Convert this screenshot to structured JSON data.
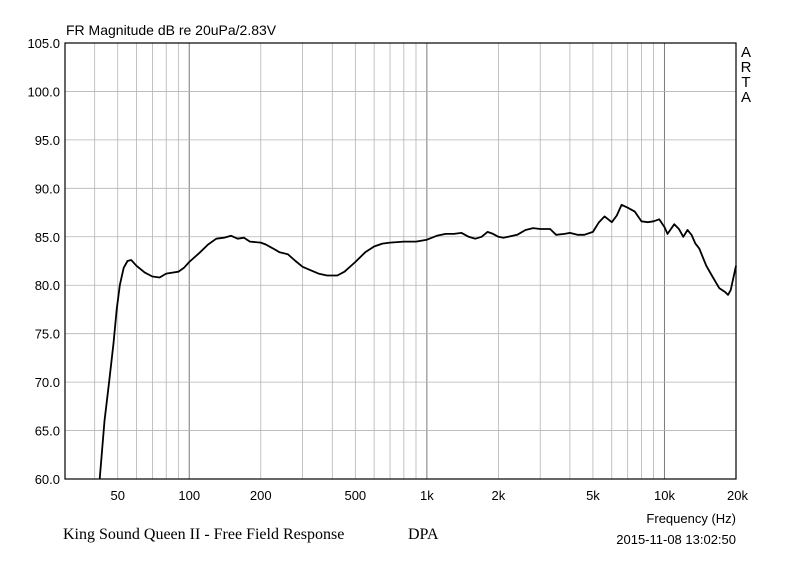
{
  "chart_data": {
    "type": "line",
    "title": "FR Magnitude dB re 20uPa/2.83V",
    "xlabel": "Frequency (Hz)",
    "ylabel": "",
    "x_scale": "log",
    "xlim": [
      30,
      20000
    ],
    "ylim": [
      60,
      105
    ],
    "grid": true,
    "y_ticks": [
      "105.0",
      "100.0",
      "95.0",
      "90.0",
      "85.0",
      "80.0",
      "75.0",
      "70.0",
      "65.0",
      "60.0"
    ],
    "x_ticks": [
      {
        "value": 50,
        "label": "50"
      },
      {
        "value": 100,
        "label": "100"
      },
      {
        "value": 200,
        "label": "200"
      },
      {
        "value": 500,
        "label": "500"
      },
      {
        "value": 1000,
        "label": "1k"
      },
      {
        "value": 2000,
        "label": "2k"
      },
      {
        "value": 5000,
        "label": "5k"
      },
      {
        "value": 10000,
        "label": "10k"
      },
      {
        "value": 20000,
        "label": "20k"
      }
    ],
    "series": [
      {
        "color": "#000000",
        "points": [
          [
            42,
            60.0
          ],
          [
            44,
            66.0
          ],
          [
            46,
            70.0
          ],
          [
            48,
            74.0
          ],
          [
            49.5,
            77.5
          ],
          [
            51,
            80.0
          ],
          [
            53,
            81.8
          ],
          [
            55,
            82.5
          ],
          [
            57,
            82.6
          ],
          [
            60,
            82.0
          ],
          [
            65,
            81.3
          ],
          [
            70,
            80.9
          ],
          [
            75,
            80.8
          ],
          [
            80,
            81.2
          ],
          [
            85,
            81.3
          ],
          [
            90,
            81.4
          ],
          [
            95,
            81.8
          ],
          [
            100,
            82.4
          ],
          [
            110,
            83.3
          ],
          [
            120,
            84.2
          ],
          [
            130,
            84.8
          ],
          [
            140,
            84.9
          ],
          [
            150,
            85.1
          ],
          [
            160,
            84.8
          ],
          [
            170,
            84.9
          ],
          [
            180,
            84.5
          ],
          [
            200,
            84.4
          ],
          [
            210,
            84.2
          ],
          [
            225,
            83.8
          ],
          [
            240,
            83.4
          ],
          [
            260,
            83.2
          ],
          [
            280,
            82.5
          ],
          [
            300,
            81.9
          ],
          [
            320,
            81.6
          ],
          [
            350,
            81.2
          ],
          [
            380,
            81.0
          ],
          [
            420,
            81.0
          ],
          [
            450,
            81.4
          ],
          [
            500,
            82.4
          ],
          [
            550,
            83.4
          ],
          [
            600,
            84.0
          ],
          [
            650,
            84.3
          ],
          [
            700,
            84.4
          ],
          [
            800,
            84.5
          ],
          [
            900,
            84.5
          ],
          [
            1000,
            84.7
          ],
          [
            1100,
            85.1
          ],
          [
            1200,
            85.3
          ],
          [
            1300,
            85.3
          ],
          [
            1400,
            85.4
          ],
          [
            1500,
            85.0
          ],
          [
            1600,
            84.8
          ],
          [
            1700,
            85.0
          ],
          [
            1800,
            85.5
          ],
          [
            1900,
            85.3
          ],
          [
            2000,
            85.0
          ],
          [
            2100,
            84.9
          ],
          [
            2200,
            85.0
          ],
          [
            2400,
            85.2
          ],
          [
            2600,
            85.7
          ],
          [
            2800,
            85.9
          ],
          [
            3000,
            85.8
          ],
          [
            3300,
            85.8
          ],
          [
            3500,
            85.2
          ],
          [
            3800,
            85.3
          ],
          [
            4000,
            85.4
          ],
          [
            4300,
            85.2
          ],
          [
            4600,
            85.2
          ],
          [
            5000,
            85.5
          ],
          [
            5300,
            86.5
          ],
          [
            5600,
            87.1
          ],
          [
            6000,
            86.5
          ],
          [
            6300,
            87.2
          ],
          [
            6600,
            88.3
          ],
          [
            7000,
            88.0
          ],
          [
            7500,
            87.6
          ],
          [
            8000,
            86.6
          ],
          [
            8500,
            86.5
          ],
          [
            9000,
            86.6
          ],
          [
            9500,
            86.8
          ],
          [
            10000,
            86.0
          ],
          [
            10300,
            85.3
          ],
          [
            11000,
            86.3
          ],
          [
            11500,
            85.8
          ],
          [
            12000,
            85.0
          ],
          [
            12500,
            85.7
          ],
          [
            13000,
            85.2
          ],
          [
            13500,
            84.3
          ],
          [
            14000,
            83.8
          ],
          [
            15000,
            82.0
          ],
          [
            16000,
            80.8
          ],
          [
            17000,
            79.7
          ],
          [
            18000,
            79.3
          ],
          [
            18500,
            79.0
          ],
          [
            19000,
            79.5
          ],
          [
            20000,
            82.0
          ]
        ]
      }
    ]
  },
  "watermark_letters": [
    "A",
    "R",
    "T",
    "A"
  ],
  "caption": {
    "left": "King Sound Queen II - Free Field Response",
    "right": "DPA"
  },
  "timestamp": "2015-11-08  13:02:50"
}
